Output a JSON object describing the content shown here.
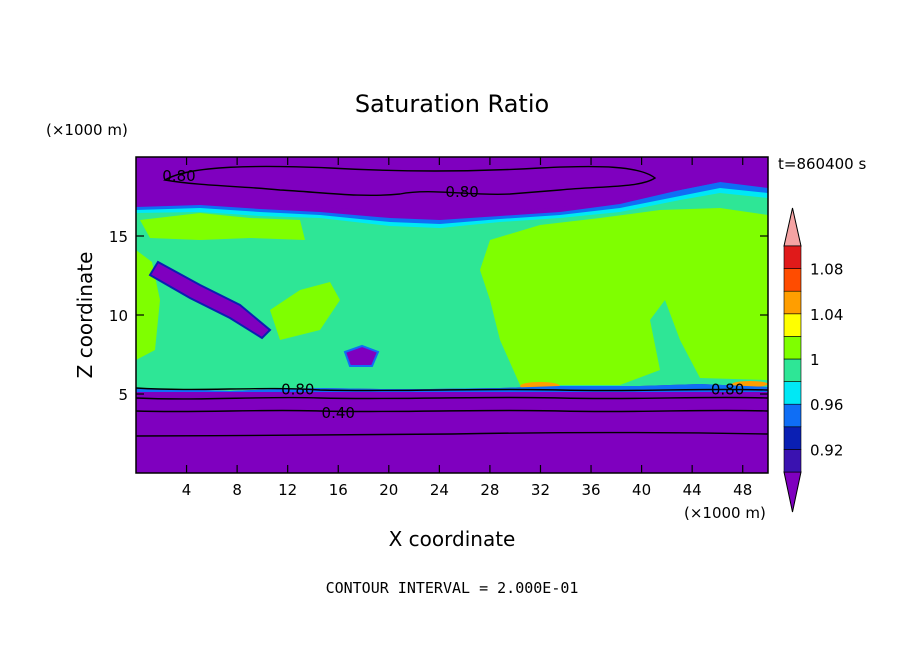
{
  "chart_data": {
    "type": "heatmap",
    "title": "Saturation Ratio",
    "xlabel": "X coordinate",
    "ylabel": "Z coordinate",
    "x_unit": "(×1000 m)",
    "y_unit": "(×1000 m)",
    "xlim": [
      0,
      50
    ],
    "ylim": [
      0,
      20
    ],
    "x_ticks": [
      4,
      8,
      12,
      16,
      20,
      24,
      28,
      32,
      36,
      40,
      44,
      48
    ],
    "y_ticks": [
      5,
      10,
      15
    ],
    "time_label": "t=860400 s",
    "footer": "CONTOUR INTERVAL = 2.000E-01",
    "contour_labels": [
      {
        "text": "0.80",
        "x": 3.4,
        "z": 18.8
      },
      {
        "text": "0.80",
        "x": 25.8,
        "z": 17.8
      },
      {
        "text": "0.80",
        "x": 12.8,
        "z": 5.3
      },
      {
        "text": "0.40",
        "x": 16.0,
        "z": 3.8
      },
      {
        "text": "0.80",
        "x": 46.8,
        "z": 5.3
      }
    ],
    "colorbar": {
      "levels": [
        0.9,
        0.92,
        0.94,
        0.96,
        0.98,
        1.0,
        1.02,
        1.04,
        1.06,
        1.08,
        1.1
      ],
      "colors": [
        "#7f00bf",
        "#3a12b0",
        "#0a1fb3",
        "#0f6ef5",
        "#00e8f5",
        "#2ee696",
        "#7fff00",
        "#ffff00",
        "#ff9e00",
        "#ff4c00",
        "#e01a1a",
        "#f5a3a3"
      ],
      "tick_labels": [
        "0.92",
        "0.96",
        "1",
        "1.04",
        "1.08"
      ]
    }
  }
}
